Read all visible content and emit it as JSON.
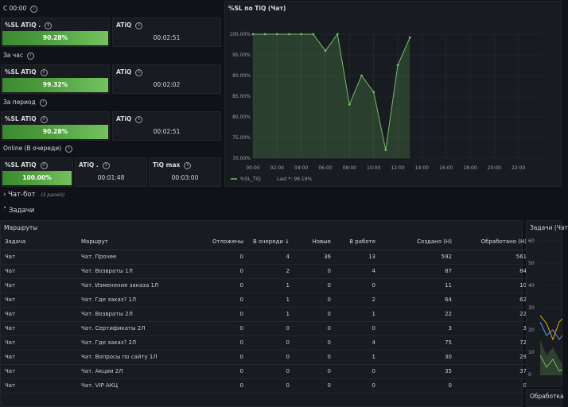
{
  "sections": {
    "since_midnight": "С 00:00",
    "last_hour": "За час",
    "period": "За период",
    "online": "Online (В очереди)",
    "chatbot": "Чат-бот",
    "chatbot_panels": "(3 panels)",
    "tasks": "Задачи"
  },
  "stats": {
    "row1": {
      "sl_title": "%SL ATiQ .",
      "sl_value": "90.28%",
      "sl_fill": 90.28,
      "atiq_title": "ATiQ",
      "atiq_value": "00:02:51"
    },
    "row2": {
      "sl_title": "%SL ATiQ",
      "sl_value": "99.32%",
      "sl_fill": 99.32,
      "atiq_title": "ATiQ",
      "atiq_value": "00:02:02"
    },
    "row3": {
      "sl_title": "%SL ATiQ",
      "sl_value": "90.28%",
      "sl_fill": 90.28,
      "atiq_title": "ATiQ",
      "atiq_value": "00:02:51"
    },
    "online": {
      "sl_title": "%SL ATiQ",
      "sl_value": "100.00%",
      "sl_fill": 100,
      "atiq_title": "ATiQ .",
      "atiq_value": "00:01:48",
      "tiq_title": "TiQ max",
      "tiq_value": "00:03:00"
    }
  },
  "chart_title": "%SL по TiQ (Чат)",
  "chart_data": {
    "type": "area",
    "title": "%SL по TiQ (Чат)",
    "x_ticks": [
      "00:00",
      "02:00",
      "04:00",
      "06:00",
      "08:00",
      "10:00",
      "12:00",
      "14:00",
      "16:00",
      "18:00",
      "20:00",
      "22:00"
    ],
    "y_ticks": [
      "100.00%",
      "95.00%",
      "90.00%",
      "85.00%",
      "80.00%",
      "75.00%",
      "70.00%"
    ],
    "ylim": [
      70,
      100
    ],
    "xlim": [
      0,
      24
    ],
    "series": [
      {
        "name": "%SL_TiQ",
        "color": "#73bf69",
        "x": [
          0,
          1,
          2,
          3,
          4,
          5,
          6,
          7,
          8,
          9,
          10,
          11,
          12,
          13
        ],
        "y": [
          100,
          100,
          100,
          100,
          100,
          100,
          96,
          100,
          83,
          90,
          86,
          72,
          92.5,
          99.19
        ]
      }
    ],
    "legend": {
      "label": "%SL_TiQ",
      "last": "Last *: 99.19%",
      "placement": "bottom-left"
    }
  },
  "routes": {
    "title": "Маршруты",
    "columns": [
      "Задача",
      "Маршрут",
      "Отложены",
      "В очереди ↓",
      "Новые",
      "В работе",
      "Создано (Н)",
      "Обработано (Н)"
    ],
    "rows": [
      [
        "Чат",
        "Чат. Прочее",
        "0",
        "4",
        "36",
        "13",
        "592",
        "561"
      ],
      [
        "Чат",
        "Чат. Возвраты 1Л",
        "0",
        "2",
        "0",
        "4",
        "87",
        "84"
      ],
      [
        "Чат",
        "Чат. Изменение заказа 1Л",
        "0",
        "1",
        "0",
        "0",
        "11",
        "10"
      ],
      [
        "Чат",
        "Чат. Где заказ? 1Л",
        "0",
        "1",
        "0",
        "2",
        "64",
        "62"
      ],
      [
        "Чат",
        "Чат. Возвраты 2Л",
        "0",
        "1",
        "0",
        "1",
        "22",
        "22"
      ],
      [
        "Чат",
        "Чат. Сертификаты 2Л",
        "0",
        "0",
        "0",
        "0",
        "3",
        "3"
      ],
      [
        "Чат",
        "Чат. Где заказ? 2Л",
        "0",
        "0",
        "0",
        "4",
        "75",
        "72"
      ],
      [
        "Чат",
        "Чат. Вопросы по сайту 1Л",
        "0",
        "0",
        "0",
        "1",
        "30",
        "29"
      ],
      [
        "Чат",
        "Чат. Акции 2Л",
        "0",
        "0",
        "0",
        "0",
        "35",
        "37"
      ],
      [
        "Чат",
        "Чат. VIP АКЦ",
        "0",
        "0",
        "0",
        "0",
        "0",
        "0"
      ]
    ]
  },
  "right_panel": {
    "title": "Задачи (Чат",
    "y_ticks": [
      "60",
      "50",
      "40",
      "30",
      "20",
      "10",
      "0"
    ],
    "bottom_title": "Обработка"
  },
  "colors": {
    "green": "#73bf69",
    "bar_start": "#3a8a30",
    "bg": "#111217",
    "panel": "#181b1f"
  }
}
